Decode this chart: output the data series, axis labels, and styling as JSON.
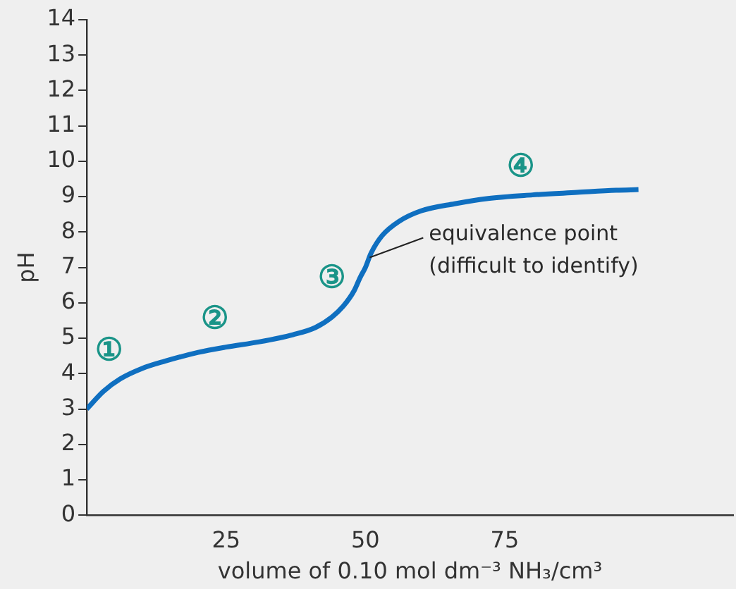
{
  "chart_data": {
    "type": "line",
    "xlabel": "volume of 0.10 mol dm⁻³ NH₃/cm³",
    "ylabel": "pH",
    "x": [
      0,
      3,
      6,
      10,
      14,
      20,
      25,
      31,
      37,
      41,
      44,
      46,
      48,
      49,
      50,
      51,
      53,
      56,
      60,
      66,
      72,
      80,
      88,
      95,
      99
    ],
    "series": [
      {
        "color": "#0f6fc0",
        "values": [
          3.0,
          3.5,
          3.85,
          4.15,
          4.35,
          4.6,
          4.75,
          4.9,
          5.1,
          5.3,
          5.6,
          5.9,
          6.35,
          6.7,
          7.0,
          7.4,
          7.9,
          8.3,
          8.6,
          8.8,
          8.95,
          9.05,
          9.12,
          9.18,
          9.2
        ]
      }
    ],
    "xlim": [
      0,
      116
    ],
    "xticks": [
      25,
      50,
      75
    ],
    "ylim": [
      0,
      14
    ],
    "yticks": [
      0,
      1,
      2,
      3,
      4,
      5,
      6,
      7,
      8,
      9,
      10,
      11,
      12,
      13,
      14
    ],
    "grid": false,
    "legend": false,
    "marker": "none",
    "line_style": "solid",
    "annotations": [
      {
        "text": "①",
        "x": 6,
        "y": 3.85
      },
      {
        "text": "②",
        "x": 25,
        "y": 4.75
      },
      {
        "text": "③",
        "x": 46,
        "y": 5.9
      },
      {
        "text": "④",
        "x": 80,
        "y": 9.05
      },
      {
        "text": "equivalence point\n(difficult to identify)",
        "x": 50,
        "y": 7.2
      }
    ]
  }
}
